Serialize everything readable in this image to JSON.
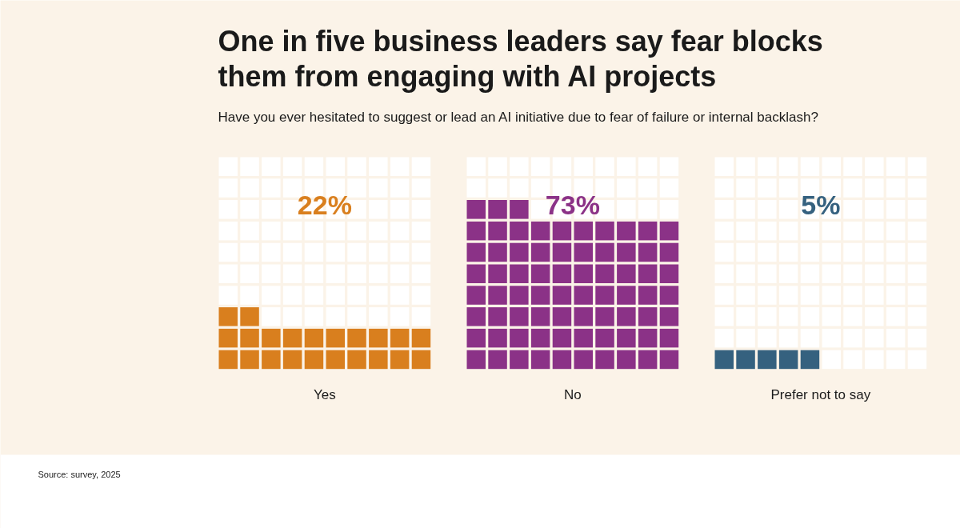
{
  "chart_data": {
    "type": "other",
    "title": "One in five business leaders say fear blocks them from engaging with AI projects",
    "subtitle": "Have you ever hesitated to suggest or lead an AI initiative due to fear of failure or internal backlash?",
    "categories": [
      "Yes",
      "No",
      "Prefer not to say"
    ],
    "values": [
      22,
      73,
      5
    ],
    "value_labels": [
      "22%",
      "73%",
      "5%"
    ],
    "colors": [
      "#d97f1e",
      "#8b3287",
      "#35617f"
    ],
    "annotations": [
      "Source: survey, 2025"
    ]
  }
}
